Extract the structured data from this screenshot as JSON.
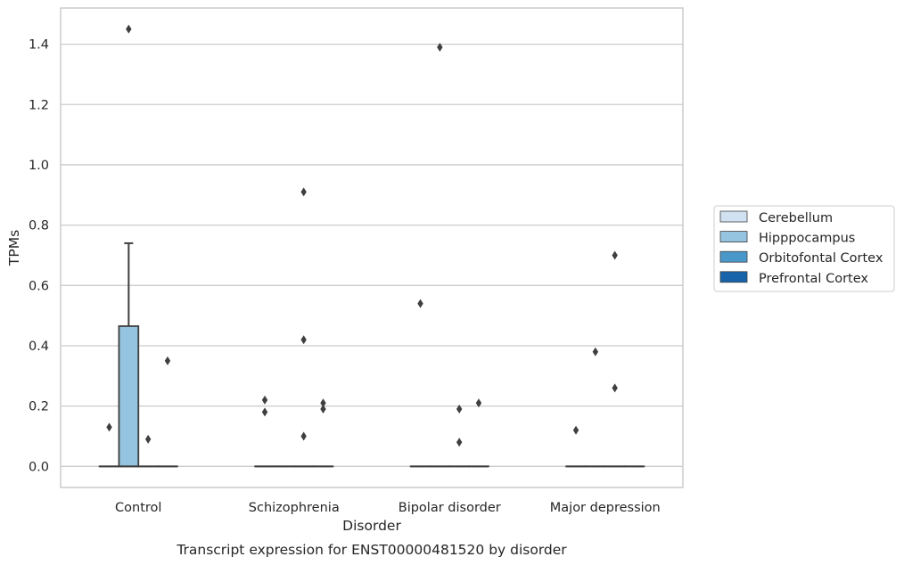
{
  "chart_data": {
    "type": "boxplot",
    "caption": "Transcript expression for ENST00000481520 by disorder",
    "xlabel": "Disorder",
    "ylabel": "TPMs",
    "ylim": [
      -0.07,
      1.52
    ],
    "yticks": [
      0.0,
      0.2,
      0.4,
      0.6,
      0.8,
      1.0,
      1.2,
      1.4
    ],
    "ytick_labels": [
      "0.0",
      "0.2",
      "0.4",
      "0.6",
      "0.8",
      "1.0",
      "1.2",
      "1.4"
    ],
    "grid": "horizontal",
    "legend_placement": "right",
    "categories": [
      "Control",
      "Schizophrenia",
      "Bipolar disorder",
      "Major depression"
    ],
    "series": [
      {
        "name": "Cerebellum",
        "color": "#d0e1f2"
      },
      {
        "name": "Hipppocampus",
        "color": "#94c4df"
      },
      {
        "name": "Orbitofontal Cortex",
        "color": "#4a98c9"
      },
      {
        "name": "Prefrontal Cortex",
        "color": "#1764ab"
      }
    ],
    "boxes": [
      {
        "category": 0,
        "series": 0,
        "q1": 0,
        "median": 0,
        "q3": 0,
        "whisker_low": 0,
        "whisker_high": 0,
        "outliers": [
          0.13
        ]
      },
      {
        "category": 0,
        "series": 1,
        "q1": 0,
        "median": 0,
        "q3": 0.465,
        "whisker_low": 0,
        "whisker_high": 0.74,
        "outliers": [
          1.45
        ]
      },
      {
        "category": 0,
        "series": 2,
        "q1": 0,
        "median": 0,
        "q3": 0,
        "whisker_low": 0,
        "whisker_high": 0,
        "outliers": [
          0.09
        ]
      },
      {
        "category": 0,
        "series": 3,
        "q1": 0,
        "median": 0,
        "q3": 0,
        "whisker_low": 0,
        "whisker_high": 0,
        "outliers": [
          0.35
        ]
      },
      {
        "category": 1,
        "series": 0,
        "q1": 0,
        "median": 0,
        "q3": 0,
        "whisker_low": 0,
        "whisker_high": 0,
        "outliers": [
          0.22,
          0.18
        ]
      },
      {
        "category": 1,
        "series": 1,
        "q1": 0,
        "median": 0,
        "q3": 0,
        "whisker_low": 0,
        "whisker_high": 0,
        "outliers": []
      },
      {
        "category": 1,
        "series": 2,
        "q1": 0,
        "median": 0,
        "q3": 0,
        "whisker_low": 0,
        "whisker_high": 0,
        "outliers": [
          0.91,
          0.42,
          0.1
        ]
      },
      {
        "category": 1,
        "series": 3,
        "q1": 0,
        "median": 0,
        "q3": 0,
        "whisker_low": 0,
        "whisker_high": 0,
        "outliers": [
          0.21,
          0.19
        ]
      },
      {
        "category": 2,
        "series": 0,
        "q1": 0,
        "median": 0,
        "q3": 0,
        "whisker_low": 0,
        "whisker_high": 0,
        "outliers": [
          0.54
        ]
      },
      {
        "category": 2,
        "series": 1,
        "q1": 0,
        "median": 0,
        "q3": 0,
        "whisker_low": 0,
        "whisker_high": 0,
        "outliers": [
          1.39
        ]
      },
      {
        "category": 2,
        "series": 2,
        "q1": 0,
        "median": 0,
        "q3": 0,
        "whisker_low": 0,
        "whisker_high": 0,
        "outliers": [
          0.19,
          0.08
        ]
      },
      {
        "category": 2,
        "series": 3,
        "q1": 0,
        "median": 0,
        "q3": 0,
        "whisker_low": 0,
        "whisker_high": 0,
        "outliers": [
          0.21
        ]
      },
      {
        "category": 3,
        "series": 0,
        "q1": 0,
        "median": 0,
        "q3": 0,
        "whisker_low": 0,
        "whisker_high": 0,
        "outliers": [
          0.12
        ]
      },
      {
        "category": 3,
        "series": 1,
        "q1": 0,
        "median": 0,
        "q3": 0,
        "whisker_low": 0,
        "whisker_high": 0,
        "outliers": [
          0.38
        ]
      },
      {
        "category": 3,
        "series": 2,
        "q1": 0,
        "median": 0,
        "q3": 0,
        "whisker_low": 0,
        "whisker_high": 0,
        "outliers": [
          0.7,
          0.26
        ]
      },
      {
        "category": 3,
        "series": 3,
        "q1": 0,
        "median": 0,
        "q3": 0,
        "whisker_low": 0,
        "whisker_high": 0,
        "outliers": []
      }
    ]
  }
}
